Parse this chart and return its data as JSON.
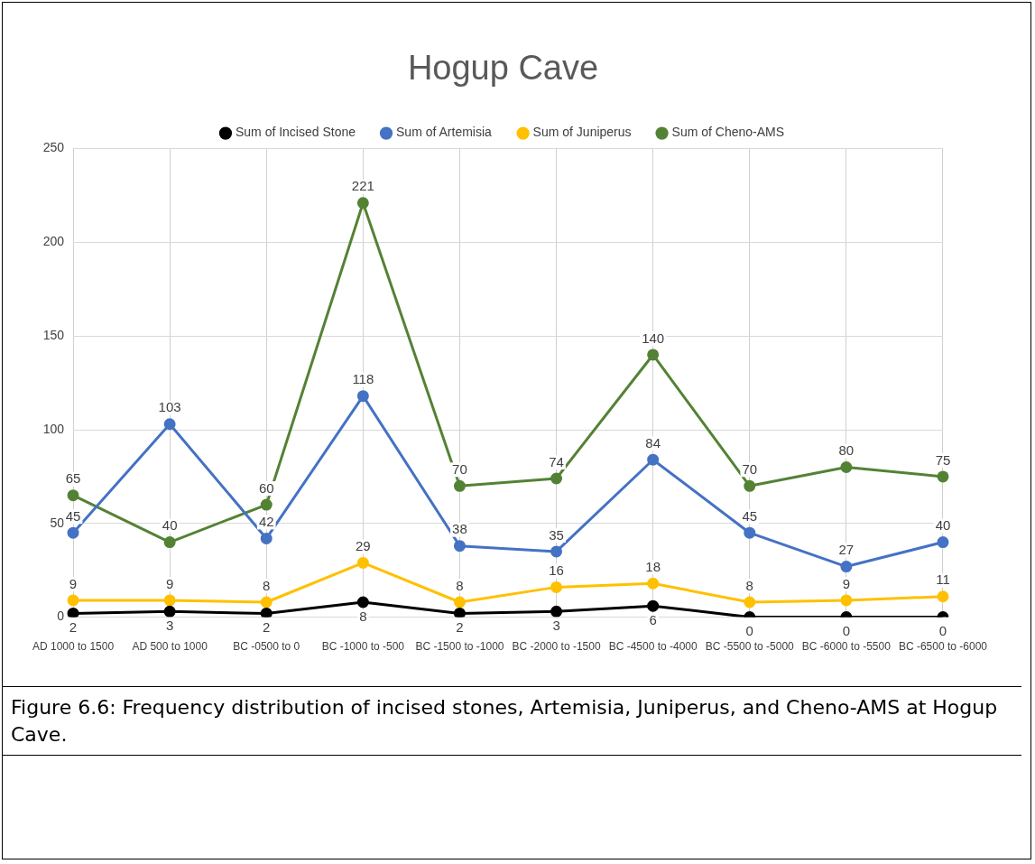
{
  "chart_data": {
    "type": "line",
    "title": "Hogup Cave",
    "categories": [
      "AD 1000 to 1500",
      "AD 500 to 1000",
      "BC -0500 to 0",
      "BC -1000 to -500",
      "BC -1500 to -1000",
      "BC -2000 to -1500",
      "BC -4500 to -4000",
      "BC -5500 to -5000",
      "BC -6000 to -5500",
      "BC -6500 to -6000"
    ],
    "series": [
      {
        "name": "Sum of Incised Stone",
        "color": "#000000",
        "values": [
          2,
          3,
          2,
          8,
          2,
          3,
          6,
          0,
          0,
          0
        ]
      },
      {
        "name": "Sum of Artemisia",
        "color": "#4472c4",
        "values": [
          45,
          103,
          42,
          118,
          38,
          35,
          84,
          45,
          27,
          40
        ]
      },
      {
        "name": "Sum of Juniperus",
        "color": "#ffc000",
        "values": [
          9,
          9,
          8,
          29,
          8,
          16,
          18,
          8,
          9,
          11
        ]
      },
      {
        "name": "Sum of Cheno-AMS",
        "color": "#548235",
        "values": [
          65,
          40,
          60,
          221,
          70,
          74,
          140,
          70,
          80,
          75
        ]
      }
    ],
    "ylim": [
      0,
      250
    ],
    "yticks": [
      0,
      50,
      100,
      150,
      200,
      250
    ],
    "grid": true,
    "legend": "top",
    "marker": "circle",
    "line_style": "solid",
    "data_labels": true,
    "annotations": [
      "Figure 6.6: Frequency distribution of incised stones, Artemisia, Juniperus, and Cheno-AMS at Hogup Cave."
    ]
  }
}
